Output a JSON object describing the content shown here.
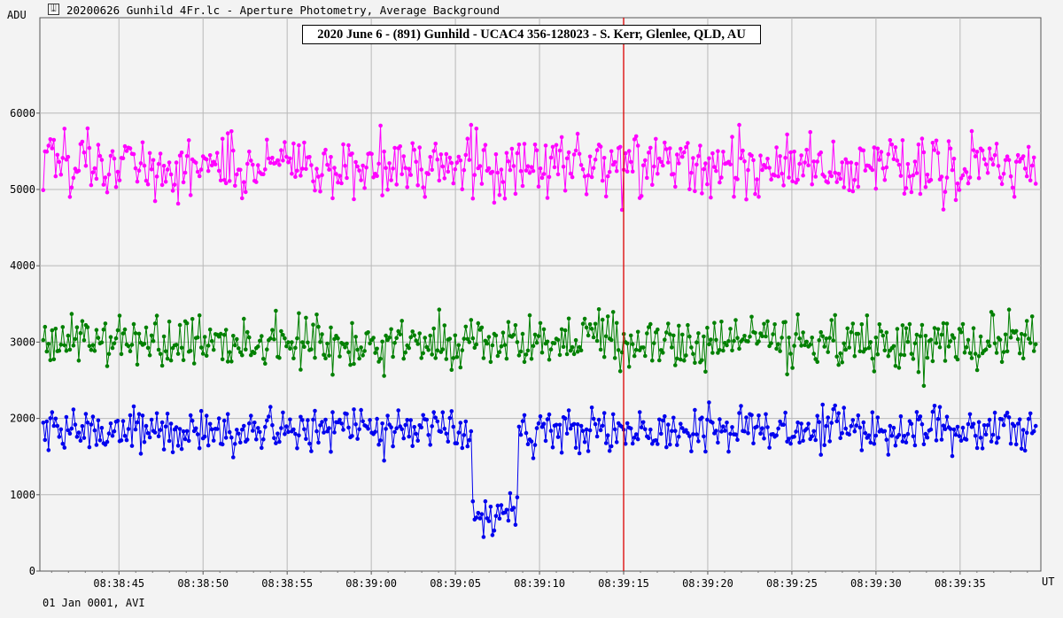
{
  "window": {
    "title": "20200626 Gunhild 4Fr.lc - Aperture Photometry, Average Background",
    "icon": "lightcurve-app-icon"
  },
  "footer": {
    "date_label": "01 Jan 0001, AVI"
  },
  "chart_data": {
    "type": "line",
    "title": "2020 June 6 - (891) Gunhild - UCAC4 356-128023 - S. Kerr, Glenlee, QLD, AU",
    "ylabel": "ADU",
    "xlabel": "UT",
    "ylim": [
      0,
      7250
    ],
    "yticks": [
      0,
      1000,
      2000,
      3000,
      4000,
      5000,
      6000
    ],
    "xlim_seconds": [
      40.3,
      99.8
    ],
    "x_tick_labels": [
      "08:38:45",
      "08:38:50",
      "08:38:55",
      "08:39:00",
      "08:39:05",
      "08:39:10",
      "08:39:15",
      "08:39:20",
      "08:39:25",
      "08:39:30",
      "08:39:35"
    ],
    "x_tick_seconds": [
      45,
      50,
      55,
      60,
      65,
      70,
      75,
      80,
      85,
      90,
      95
    ],
    "grid": true,
    "cursor": {
      "time": "08:39:15",
      "color": "#dd0000"
    },
    "series": [
      {
        "color": "#ff00ff",
        "mean": 5300,
        "spread": 480,
        "dips": []
      },
      {
        "color": "#008000",
        "mean": 3000,
        "spread": 420,
        "dips": []
      },
      {
        "color": "#0000ee",
        "mean": 1850,
        "spread": 330,
        "dips": [
          {
            "from_time": "08:39:06.0",
            "to_time": "08:39:08.7",
            "level": 750
          }
        ]
      }
    ]
  }
}
